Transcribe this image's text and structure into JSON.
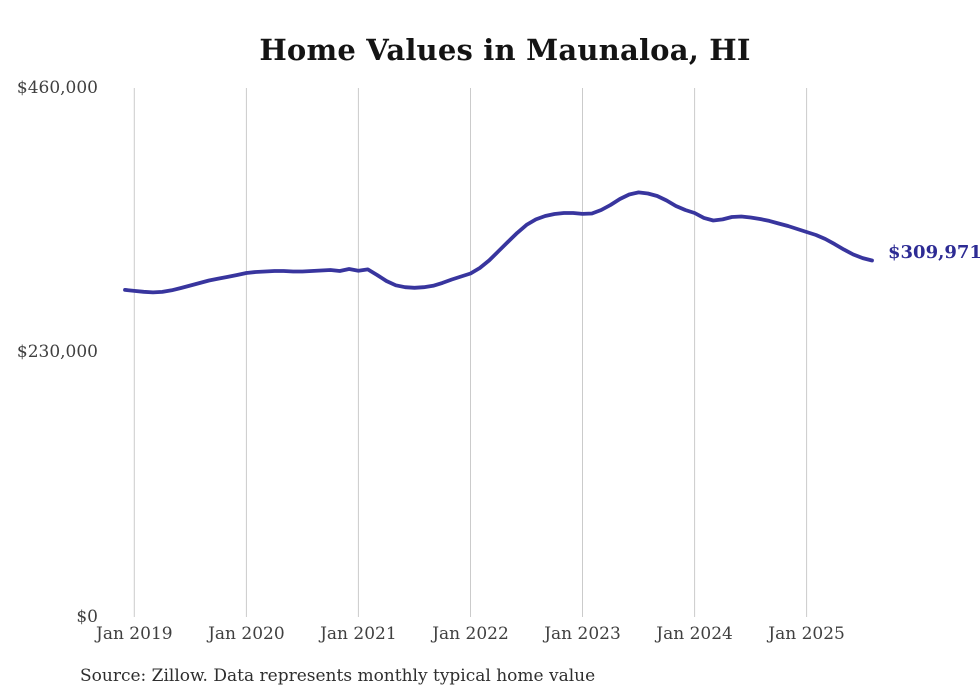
{
  "page": {
    "title": "Home Values in Maunaloa, HI",
    "source_note": "Source: Zillow. Data represents monthly typical home value",
    "end_value_label": "$309,971"
  },
  "colors": {
    "line": "#38359E",
    "end_label": "#2D2B94",
    "grid": "#CBCBCB",
    "axis_text": "#404040",
    "title_text": "#141414",
    "source_text": "#2E2E2E",
    "background": "#FFFFFF"
  },
  "chart_data": {
    "type": "line",
    "title": "Home Values in Maunaloa, HI",
    "series_name": "Typical home value",
    "xlabel": "",
    "ylabel": "",
    "ylim": [
      0,
      460000
    ],
    "grid": "vertical",
    "legend": "none",
    "annotation": {
      "text": "$309,971",
      "position": "end-of-line"
    },
    "y_ticks": [
      {
        "value": 0,
        "label": "$0"
      },
      {
        "value": 230000,
        "label": "$230,000"
      },
      {
        "value": 460000,
        "label": "$460,000"
      }
    ],
    "x_ticks": [
      {
        "index": 1,
        "label": "Jan 2019"
      },
      {
        "index": 13,
        "label": "Jan 2020"
      },
      {
        "index": 25,
        "label": "Jan 2021"
      },
      {
        "index": 37,
        "label": "Jan 2022"
      },
      {
        "index": 49,
        "label": "Jan 2023"
      },
      {
        "index": 61,
        "label": "Jan 2024"
      },
      {
        "index": 73,
        "label": "Jan 2025"
      }
    ],
    "x": [
      "Dec 2018",
      "Jan 2019",
      "Feb 2019",
      "Mar 2019",
      "Apr 2019",
      "May 2019",
      "Jun 2019",
      "Jul 2019",
      "Aug 2019",
      "Sep 2019",
      "Oct 2019",
      "Nov 2019",
      "Dec 2019",
      "Jan 2020",
      "Feb 2020",
      "Mar 2020",
      "Apr 2020",
      "May 2020",
      "Jun 2020",
      "Jul 2020",
      "Aug 2020",
      "Sep 2020",
      "Oct 2020",
      "Nov 2020",
      "Dec 2020",
      "Jan 2021",
      "Feb 2021",
      "Mar 2021",
      "Apr 2021",
      "May 2021",
      "Jun 2021",
      "Jul 2021",
      "Aug 2021",
      "Sep 2021",
      "Oct 2021",
      "Nov 2021",
      "Dec 2021",
      "Jan 2022",
      "Feb 2022",
      "Mar 2022",
      "Apr 2022",
      "May 2022",
      "Jun 2022",
      "Jul 2022",
      "Aug 2022",
      "Sep 2022",
      "Oct 2022",
      "Nov 2022",
      "Dec 2022",
      "Jan 2023",
      "Feb 2023",
      "Mar 2023",
      "Apr 2023",
      "May 2023",
      "Jun 2023",
      "Jul 2023",
      "Aug 2023",
      "Sep 2023",
      "Oct 2023",
      "Nov 2023",
      "Dec 2023",
      "Jan 2024",
      "Feb 2024",
      "Mar 2024",
      "Apr 2024",
      "May 2024",
      "Jun 2024",
      "Jul 2024",
      "Aug 2024",
      "Sep 2024",
      "Oct 2024",
      "Nov 2024",
      "Dec 2024",
      "Jan 2025",
      "Feb 2025",
      "Mar 2025",
      "Apr 2025",
      "May 2025",
      "Jun 2025",
      "Jul 2025",
      "Aug 2025"
    ],
    "values": [
      284400,
      283600,
      282800,
      282300,
      282700,
      284100,
      286100,
      288300,
      290400,
      292600,
      294300,
      295700,
      297400,
      299100,
      300000,
      300400,
      300900,
      300900,
      300400,
      300400,
      300900,
      301300,
      301700,
      300900,
      302600,
      301100,
      302300,
      297400,
      292200,
      288400,
      286800,
      286300,
      286800,
      288000,
      290500,
      293500,
      296100,
      298700,
      303500,
      310100,
      318100,
      326100,
      334000,
      341000,
      345700,
      348700,
      350400,
      351300,
      351300,
      350500,
      350900,
      353900,
      358300,
      363500,
      367400,
      369200,
      368300,
      366100,
      362200,
      357400,
      353900,
      351300,
      347000,
      344800,
      345700,
      347800,
      348300,
      347400,
      346100,
      344400,
      342200,
      340000,
      337400,
      334800,
      332200,
      328700,
      324300,
      319500,
      315200,
      312100,
      309971
    ]
  }
}
